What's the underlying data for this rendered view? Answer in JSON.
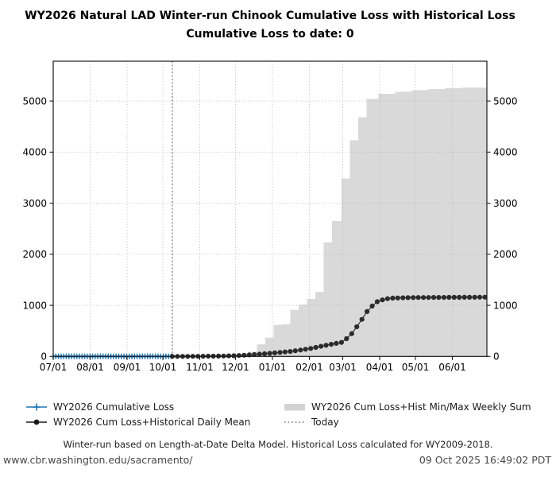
{
  "title": {
    "line1": "WY2026 Natural LAD Winter-run Chinook Cumulative Loss with Historical Loss",
    "line2": "Cumulative Loss to date: 0"
  },
  "cumulative_loss_to_date": 0,
  "chart_data": {
    "type": "line",
    "x_axis": {
      "tick_labels": [
        "07/01",
        "08/01",
        "09/01",
        "10/01",
        "11/01",
        "12/01",
        "01/01",
        "02/01",
        "03/01",
        "04/01",
        "05/01",
        "06/01"
      ],
      "tick_days": [
        0,
        31,
        62,
        92,
        123,
        153,
        184,
        215,
        243,
        274,
        304,
        335
      ],
      "domain_days": [
        0,
        364
      ],
      "grid": true
    },
    "y_axis": {
      "ticks": [
        0,
        1000,
        2000,
        3000,
        4000,
        5000
      ],
      "domain": [
        0,
        5780
      ],
      "grid": true,
      "mirrored_right": true
    },
    "today": {
      "label": "Today",
      "day": 100,
      "date": "10/09",
      "color": "#555555"
    },
    "series": [
      {
        "name": "WY2026 Cumulative Loss",
        "style": "line_plus_markers",
        "color": "#1f77b4",
        "marker_interval_days": 2.2,
        "points_day_value": [
          [
            0,
            0
          ],
          [
            100,
            0
          ]
        ]
      },
      {
        "name": "WY2026 Cum Loss+Historical Daily Mean",
        "style": "line_dot_markers",
        "color": "#2b2b2b",
        "dot_interval_days": 4.3,
        "control_points_day_value": [
          [
            100,
            0
          ],
          [
            110,
            0
          ],
          [
            125,
            3
          ],
          [
            140,
            6
          ],
          [
            153,
            14
          ],
          [
            168,
            34
          ],
          [
            184,
            64
          ],
          [
            199,
            97
          ],
          [
            215,
            150
          ],
          [
            229,
            218
          ],
          [
            243,
            278
          ],
          [
            250,
            430
          ],
          [
            257,
            650
          ],
          [
            264,
            900
          ],
          [
            271,
            1062
          ],
          [
            278,
            1122
          ],
          [
            285,
            1142
          ],
          [
            300,
            1152
          ],
          [
            364,
            1160
          ]
        ]
      },
      {
        "name": "WY2026 Cum Loss+Hist Min/Max Weekly Sum",
        "style": "band",
        "color": "#d9d9d9",
        "min_value": 0,
        "max_steps_day_value": [
          [
            150,
            6
          ],
          [
            157,
            26
          ],
          [
            164,
            92
          ],
          [
            171,
            236
          ],
          [
            178,
            366
          ],
          [
            185,
            616
          ],
          [
            192,
            628
          ],
          [
            199,
            912
          ],
          [
            206,
            1012
          ],
          [
            213,
            1126
          ],
          [
            220,
            1262
          ],
          [
            227,
            2232
          ],
          [
            234,
            2652
          ],
          [
            242,
            3482
          ],
          [
            249,
            4232
          ],
          [
            256,
            4682
          ],
          [
            263,
            5042
          ],
          [
            273,
            5142
          ],
          [
            287,
            5182
          ],
          [
            301,
            5212
          ],
          [
            315,
            5236
          ],
          [
            329,
            5252
          ],
          [
            343,
            5262
          ],
          [
            364,
            5272
          ]
        ]
      }
    ],
    "grid_color": "#b5b5b5",
    "frame_color": "#1a1a1a"
  },
  "legend": {
    "items": [
      {
        "label": "WY2026 Cumulative Loss",
        "swatch": "blue-line-plus"
      },
      {
        "label": "WY2026 Cum Loss+Historical Daily Mean",
        "swatch": "black-line-dot"
      },
      {
        "label": "WY2026 Cum Loss+Hist Min/Max Weekly Sum",
        "swatch": "gray-patch"
      },
      {
        "label": "Today",
        "swatch": "dotted-line"
      }
    ]
  },
  "footer": {
    "note": "Winter-run based on Length-at-Date Delta Model. Historical Loss calculated for WY2009-2018.",
    "url": "www.cbr.washington.edu/sacramento/",
    "timestamp": "09 Oct 2025 16:49:02 PDT"
  }
}
